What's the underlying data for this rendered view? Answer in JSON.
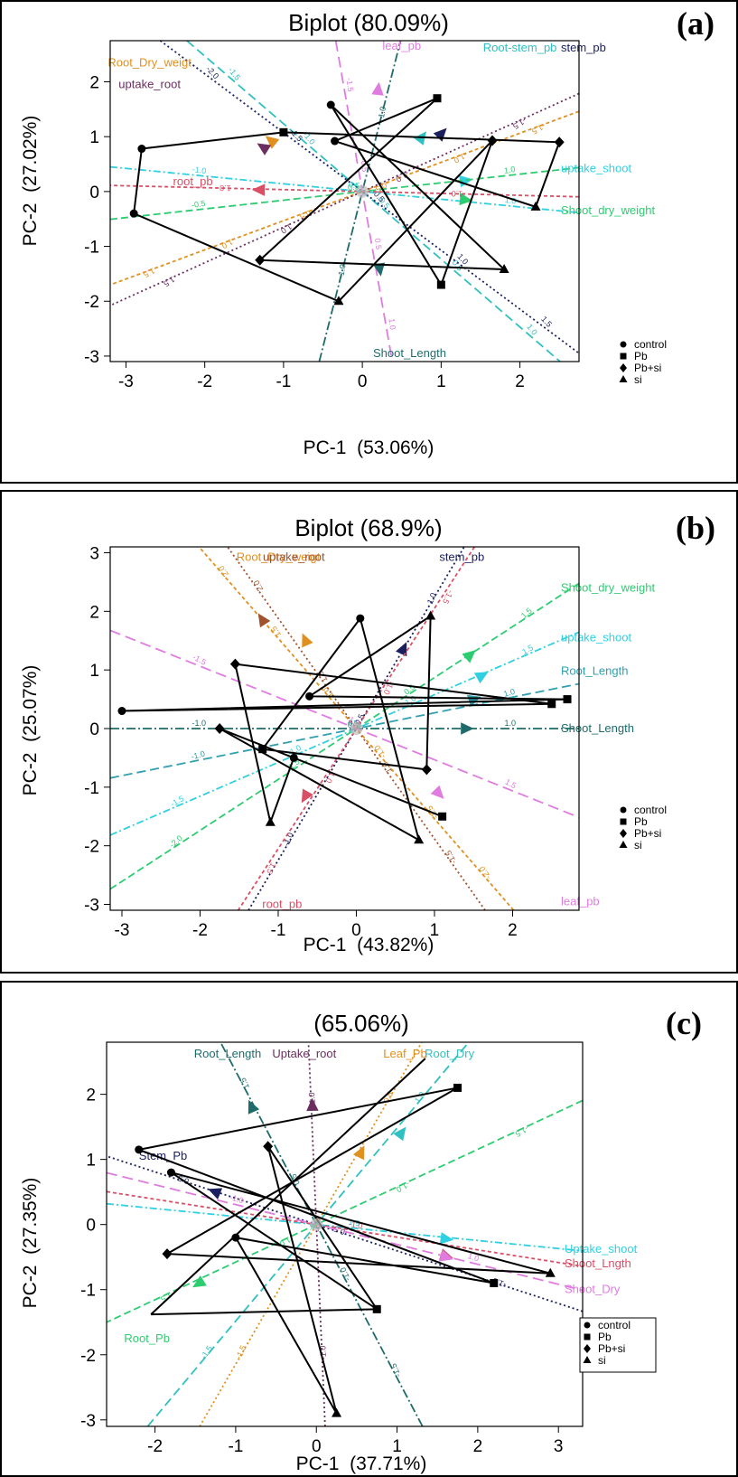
{
  "figure": {
    "panels": [
      {
        "title": "Biplot (80.09%)",
        "letter": "(a)",
        "xlabel": "PC-1  (53.06%)",
        "ylabel": "PC-2  (27.02%)"
      },
      {
        "title": "Biplot (68.9%)",
        "letter": "(b)",
        "xlabel": "PC-1  (43.82%)",
        "ylabel": "PC-2  (25.07%)"
      },
      {
        "title": "(65.06%)",
        "letter": "(c)",
        "xlabel": "PC-1  (37.71%)",
        "ylabel": "PC-2  (27.35%)"
      }
    ]
  },
  "chart_data": [
    {
      "type": "scatter",
      "subtype": "biplot",
      "title": "Biplot (80.09%)",
      "panel_letter": "(a)",
      "xlabel": "PC-1  (53.06%)",
      "ylabel": "PC-2  (27.02%)",
      "xlim": [
        -3.2,
        2.75
      ],
      "ylim": [
        -3.1,
        2.75
      ],
      "xticks": [
        -3,
        -2,
        -1,
        0,
        1,
        2
      ],
      "yticks": [
        -3,
        -2,
        -1,
        0,
        1,
        2
      ],
      "legend": {
        "position": "bottom-right",
        "entries": [
          "control",
          "Pb",
          "Pb+si",
          "si"
        ]
      },
      "star_path": [
        [
          -2.8,
          0.78
        ],
        [
          -1.0,
          1.08
        ],
        [
          2.5,
          0.9
        ],
        [
          2.2,
          -0.28
        ],
        [
          -0.35,
          0.92
        ],
        [
          0.95,
          1.7
        ],
        [
          -1.3,
          -1.25
        ],
        [
          1.8,
          -1.42
        ],
        [
          -0.4,
          1.58
        ],
        [
          1.0,
          -1.7
        ],
        [
          1.65,
          0.93
        ],
        [
          -0.3,
          -2.0
        ],
        [
          -2.9,
          -0.4
        ],
        [
          -2.8,
          0.78
        ]
      ],
      "variables": [
        {
          "name": "Root_Dry_weigt",
          "color": "#e0901e",
          "dash": "4,3",
          "angle": -152,
          "mid_arrow": [
            -1.15,
            0.92
          ],
          "label_pos": [
            -2.7,
            2.35
          ],
          "tick_labels": [
            "1.5",
            "1.0",
            "0.5",
            "-0.5",
            "-1.0",
            "-1.5"
          ]
        },
        {
          "name": "uptake_root",
          "color": "#6b2e5e",
          "dash": "2,3",
          "angle": -147,
          "mid_arrow": [
            -1.25,
            0.8
          ],
          "label_pos": [
            -2.7,
            1.95
          ],
          "tick_labels": [
            "1.5",
            "1.0",
            "-1.0",
            "-1.5"
          ]
        },
        {
          "name": "leaf_pb",
          "color": "#e07ce0",
          "dash": "12,6",
          "angle": -83,
          "mid_arrow": [
            0.2,
            1.85
          ],
          "label_pos": [
            0.5,
            2.65
          ],
          "tick_labels": [
            "1.0",
            "0.5",
            "-0.5",
            "-1.5"
          ]
        },
        {
          "name": "Root-stem_pb",
          "color": "#30c0c0",
          "dash": "10,5",
          "angle": -51,
          "mid_arrow": [
            0.75,
            0.98
          ],
          "label_pos": [
            2.0,
            2.62
          ],
          "tick_labels": [
            "1.0",
            "0.5",
            "-0.5",
            "-1.0",
            "-1.5"
          ]
        },
        {
          "name": "stem_pb",
          "color": "#1a1f5e",
          "dash": "2,3",
          "angle": -47,
          "mid_arrow": [
            1.0,
            1.05
          ],
          "label_pos": [
            2.55,
            2.62
          ],
          "tick_labels": [
            "1.5",
            "1.0",
            "0.5",
            "-1.5",
            "-2.0"
          ]
        },
        {
          "name": "uptake_shoot",
          "color": "#30d0e0",
          "dash": "8,3,2,3",
          "angle": -8,
          "mid_arrow": [
            1.3,
            0.2
          ],
          "label_pos": [
            2.55,
            0.42
          ],
          "tick_labels": [
            "1.0",
            "0.5",
            "-1.0"
          ]
        },
        {
          "name": "Shoot_dry_weight",
          "color": "#2ecc71",
          "dash": "8,4",
          "angle": 9,
          "mid_arrow": [
            1.3,
            -0.15
          ],
          "label_pos": [
            2.6,
            -0.35
          ],
          "tick_labels": [
            "1.0",
            "0.5",
            "-0.5"
          ]
        },
        {
          "name": "Shoot_Length",
          "color": "#1f6b6b",
          "dash": "10,3,2,3",
          "angle": 80,
          "mid_arrow": [
            0.22,
            -1.4
          ],
          "label_pos": [
            0.6,
            -2.95
          ],
          "tick_labels": [
            "1.0",
            "-1.0"
          ]
        },
        {
          "name": "root_pb",
          "color": "#d94f66",
          "dash": "4,3",
          "angle": 178,
          "mid_arrow": [
            -1.3,
            0.03
          ],
          "label_pos": [
            -2.15,
            0.18
          ],
          "tick_labels": [
            "1.0",
            "-1.0"
          ]
        }
      ]
    },
    {
      "type": "scatter",
      "subtype": "biplot",
      "title": "Biplot (68.9%)",
      "panel_letter": "(b)",
      "xlabel": "PC-1  (43.82%)",
      "ylabel": "PC-2  (25.07%)",
      "xlim": [
        -3.15,
        2.85
      ],
      "ylim": [
        -3.1,
        3.1
      ],
      "xticks": [
        -3,
        -2,
        -1,
        0,
        1,
        2
      ],
      "yticks": [
        -3,
        -2,
        -1,
        0,
        1,
        2,
        3
      ],
      "legend": {
        "position": "bottom-right",
        "entries": [
          "control",
          "Pb",
          "Pb+si",
          "si"
        ]
      },
      "star_path": [
        [
          -3.0,
          0.3
        ],
        [
          2.5,
          0.42
        ],
        [
          -1.55,
          1.1
        ],
        [
          -1.1,
          -1.6
        ],
        [
          -0.8,
          -0.5
        ],
        [
          1.1,
          -1.5
        ],
        [
          -1.75,
          0.0
        ],
        [
          0.8,
          -1.9
        ],
        [
          0.05,
          1.88
        ],
        [
          -1.2,
          -0.35
        ],
        [
          0.9,
          -0.7
        ],
        [
          0.95,
          1.92
        ],
        [
          -0.6,
          0.55
        ],
        [
          2.7,
          0.5
        ],
        [
          -3.0,
          0.3
        ]
      ],
      "variables": [
        {
          "name": "Root_Dry_weigt",
          "color": "#e0901e",
          "dash": "4,3",
          "angle": 123,
          "mid_arrow": [
            -0.65,
            1.5
          ],
          "label_pos": [
            -1.0,
            2.92
          ],
          "tick_labels": [
            "2.0",
            "1.5",
            "1.0",
            "-1.0",
            "-1.5",
            "-2.0"
          ]
        },
        {
          "name": "uptake_root",
          "color": "#a0522d",
          "dash": "2,3",
          "angle": 118,
          "mid_arrow": [
            -1.2,
            1.85
          ],
          "label_pos": [
            -0.8,
            2.92
          ],
          "tick_labels": [
            "2.0",
            "1.5",
            "1.0",
            "-1.5"
          ]
        },
        {
          "name": "stem_pb",
          "color": "#1a1f5e",
          "dash": "2,3",
          "angle": 66,
          "mid_arrow": [
            0.6,
            1.35
          ],
          "label_pos": [
            1.35,
            2.92
          ],
          "tick_labels": [
            "1.0",
            "0.5",
            "-1.0"
          ]
        },
        {
          "name": "Shoot_dry_weight",
          "color": "#2ecc71",
          "dash": "8,4",
          "angle": 41,
          "mid_arrow": [
            1.45,
            1.25
          ],
          "label_pos": [
            2.95,
            2.4
          ],
          "tick_labels": [
            "1.5",
            "0.5",
            "-1.5",
            "-2.0"
          ]
        },
        {
          "name": "uptake_shoot",
          "color": "#30d0e0",
          "dash": "8,3,2,3",
          "angle": 30,
          "mid_arrow": [
            1.6,
            0.9
          ],
          "label_pos": [
            3.0,
            1.55
          ],
          "tick_labels": [
            "1.5",
            "1.0",
            "-1.0",
            "-1.5"
          ]
        },
        {
          "name": "Root_Length",
          "color": "#30a0b0",
          "dash": "10,5",
          "angle": 15,
          "mid_arrow": [
            1.5,
            0.5
          ],
          "label_pos": [
            3.0,
            0.98
          ],
          "tick_labels": [
            "1.0",
            "0.5",
            "-1.0"
          ]
        },
        {
          "name": "Shoot_Length",
          "color": "#1f6b6b",
          "dash": "10,3,2,3",
          "angle": 0,
          "mid_arrow": [
            1.4,
            0.0
          ],
          "label_pos": [
            3.0,
            0.0
          ],
          "tick_labels": [
            "1.0",
            "0.5",
            "-1.0"
          ]
        },
        {
          "name": "leaf_pb",
          "color": "#e07ce0",
          "dash": "12,6",
          "angle": -28,
          "mid_arrow": [
            1.05,
            -1.1
          ],
          "label_pos": [
            3.0,
            -2.95
          ],
          "tick_labels": [
            "1.5",
            "1.0",
            "-1.5"
          ]
        },
        {
          "name": "root_pb",
          "color": "#d94f66",
          "dash": "4,3",
          "angle": -116,
          "mid_arrow": [
            -0.65,
            -1.15
          ],
          "label_pos": [
            -0.95,
            -3.0
          ],
          "tick_labels": [
            "1.5",
            "1.0",
            "-1.0",
            "-1.5"
          ]
        }
      ]
    },
    {
      "type": "scatter",
      "subtype": "biplot",
      "title": "(65.06%)",
      "panel_letter": "(c)",
      "xlabel": "PC-1  (37.71%)",
      "ylabel": "PC-2  (27.35%)",
      "xlim": [
        -2.6,
        3.3
      ],
      "ylim": [
        -3.1,
        2.8
      ],
      "xticks": [
        -2,
        -1,
        0,
        1,
        2,
        3
      ],
      "yticks": [
        -3,
        -2,
        -1,
        0,
        1,
        2
      ],
      "legend": {
        "position": "bottom-right",
        "entries": [
          "control",
          "Pb",
          "Pb+si",
          "si"
        ]
      },
      "star_path": [
        [
          -2.2,
          1.15
        ],
        [
          1.75,
          2.1
        ],
        [
          -1.85,
          -0.45
        ],
        [
          2.9,
          -0.75
        ],
        [
          -1.8,
          0.8
        ],
        [
          0.75,
          -1.3
        ],
        [
          -0.6,
          1.2
        ],
        [
          0.25,
          -2.9
        ],
        [
          -1.0,
          -0.2
        ],
        [
          2.2,
          -0.9
        ],
        [
          -2.2,
          1.15
        ]
      ],
      "extra_segments": [
        [
          [
            -2.05,
            -1.38
          ],
          [
            0.75,
            -1.3
          ]
        ],
        [
          [
            -2.05,
            -1.38
          ],
          [
            1.35,
            2.55
          ]
        ]
      ],
      "variables": [
        {
          "name": "Root_Length",
          "color": "#1f6b6b",
          "dash": "10,3,2,3",
          "angle": 113,
          "mid_arrow": [
            -0.8,
            1.8
          ],
          "label_pos": [
            -1.1,
            2.62
          ],
          "tick_labels": [
            "1.5",
            "0.5",
            "-1.0",
            "-1.5"
          ]
        },
        {
          "name": "Uptake_root",
          "color": "#6b2e5e",
          "dash": "2,3",
          "angle": 92,
          "mid_arrow": [
            -0.05,
            1.82
          ],
          "label_pos": [
            -0.15,
            2.62
          ],
          "tick_labels": [
            "1.0",
            "-0.5",
            "-1.0"
          ]
        },
        {
          "name": "Leaf_Pb",
          "color": "#e0901e",
          "dash": "2,3",
          "angle": 65,
          "mid_arrow": [
            0.55,
            1.1
          ],
          "label_pos": [
            1.1,
            2.62
          ],
          "tick_labels": [
            "0.5",
            "-1.0",
            "-1.5"
          ]
        },
        {
          "name": "Root_Dry",
          "color": "#30c0c0",
          "dash": "10,5",
          "angle": 56,
          "mid_arrow": [
            1.05,
            1.4
          ],
          "label_pos": [
            1.65,
            2.62
          ],
          "tick_labels": [
            "1.0",
            "-1.0",
            "-1.5"
          ]
        },
        {
          "name": "Stem_Pb",
          "color": "#1a1f5e",
          "dash": "2,3",
          "angle": 158,
          "mid_arrow": [
            -1.25,
            0.5
          ],
          "label_pos": [
            -1.9,
            1.05
          ],
          "tick_labels": [
            "0.5",
            "-0.5",
            "-1.0"
          ]
        },
        {
          "name": "Uptake_shoot",
          "color": "#30d0e0",
          "dash": "8,3,2,3",
          "angle": -7,
          "mid_arrow": [
            1.6,
            -0.22
          ],
          "label_pos": [
            3.3,
            -0.38
          ],
          "tick_labels": [
            "1.9"
          ]
        },
        {
          "name": "Shoot_Lngth",
          "color": "#d94f66",
          "dash": "4,3",
          "angle": -11,
          "mid_arrow": [
            1.6,
            -0.48
          ],
          "label_pos": [
            3.3,
            -0.6
          ],
          "tick_labels": [
            "-1.0"
          ]
        },
        {
          "name": "Shoot_Dry",
          "color": "#e07ce0",
          "dash": "12,6",
          "angle": -17,
          "mid_arrow": [
            1.6,
            -0.5
          ],
          "label_pos": [
            3.3,
            -1.0
          ],
          "tick_labels": [
            "1.0",
            "-1.0"
          ]
        },
        {
          "name": "Root_Pb",
          "color": "#2ecc71",
          "dash": "8,4",
          "angle": -150,
          "mid_arrow": [
            -1.45,
            -0.9
          ],
          "label_pos": [
            -2.1,
            -1.75
          ],
          "tick_labels": [
            "1.5",
            "1.0",
            "-1.0",
            "-1.5"
          ]
        }
      ]
    }
  ]
}
